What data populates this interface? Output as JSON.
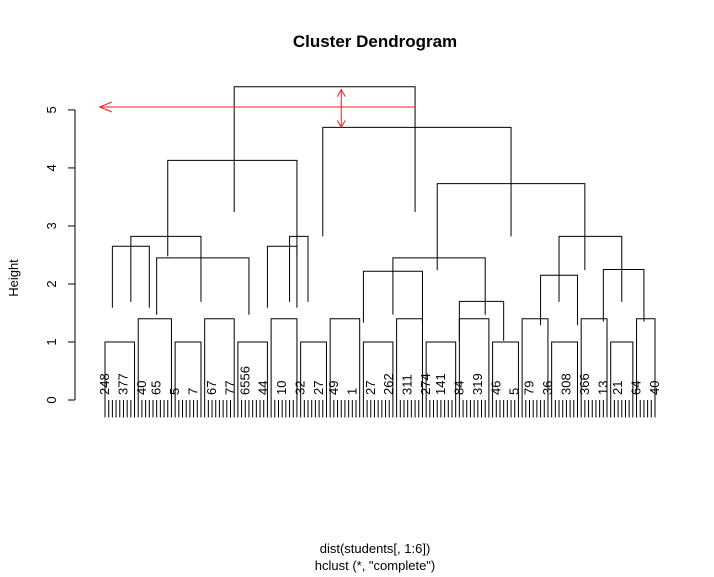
{
  "chart_data": {
    "type": "dendrogram",
    "title": "Cluster Dendrogram",
    "xlabel": "dist(students[, 1:6])",
    "sub": "hclust (*, \"complete\")",
    "ylabel": "Height",
    "ylim": [
      0,
      5.5
    ],
    "yticks": [
      0,
      1,
      2,
      3,
      4,
      5
    ],
    "leaf_count": 150,
    "leaf_bottom": -0.3,
    "merges": [
      {
        "x1": 2,
        "x2": 12,
        "h": 2.65,
        "name": "A1"
      },
      {
        "x1": 14,
        "x2": 39,
        "h": 2.45,
        "name": "A2"
      },
      {
        "x1": 7,
        "x2": 26,
        "h": 2.82,
        "name": "A"
      },
      {
        "x1": 44,
        "x2": 52,
        "h": 2.65,
        "name": "B1"
      },
      {
        "x1": 50,
        "x2": 55,
        "h": 2.82,
        "name": "B"
      },
      {
        "x1": 17,
        "x2": 52,
        "h": 4.13,
        "name": "L"
      },
      {
        "x1": 70,
        "x2": 86,
        "h": 2.22,
        "name": "C1"
      },
      {
        "x1": 96,
        "x2": 108,
        "h": 1.7,
        "name": "C2"
      },
      {
        "x1": 78,
        "x2": 103,
        "h": 2.45,
        "name": "C"
      },
      {
        "x1": 118,
        "x2": 128,
        "h": 2.15,
        "name": "D1"
      },
      {
        "x1": 135,
        "x2": 146,
        "h": 2.25,
        "name": "D2"
      },
      {
        "x1": 123,
        "x2": 140,
        "h": 2.82,
        "name": "D"
      },
      {
        "x1": 90,
        "x2": 130,
        "h": 3.73,
        "name": "R2"
      },
      {
        "x1": 59,
        "x2": 110,
        "h": 4.7,
        "name": "R"
      },
      {
        "x1": 35,
        "x2": 84,
        "h": 5.4,
        "name": "root"
      }
    ],
    "leaf_labels": [
      "248",
      "377",
      "40",
      "65",
      "5",
      "7",
      "67",
      "77",
      "6556",
      "44",
      "10",
      "32",
      "27",
      "49",
      "1",
      "27",
      "262",
      "311",
      "274",
      "141",
      "84",
      "319",
      "46",
      "5",
      "79",
      "36",
      "308",
      "366",
      "13",
      "21",
      "64",
      "40"
    ],
    "annotation": {
      "arrow_h": {
        "x_from": 84,
        "x_to": 4,
        "y": 5.05
      },
      "arrow_v": {
        "x": 64,
        "y_from": 5.35,
        "y_to": 4.7
      },
      "color": "#e8221b"
    }
  }
}
